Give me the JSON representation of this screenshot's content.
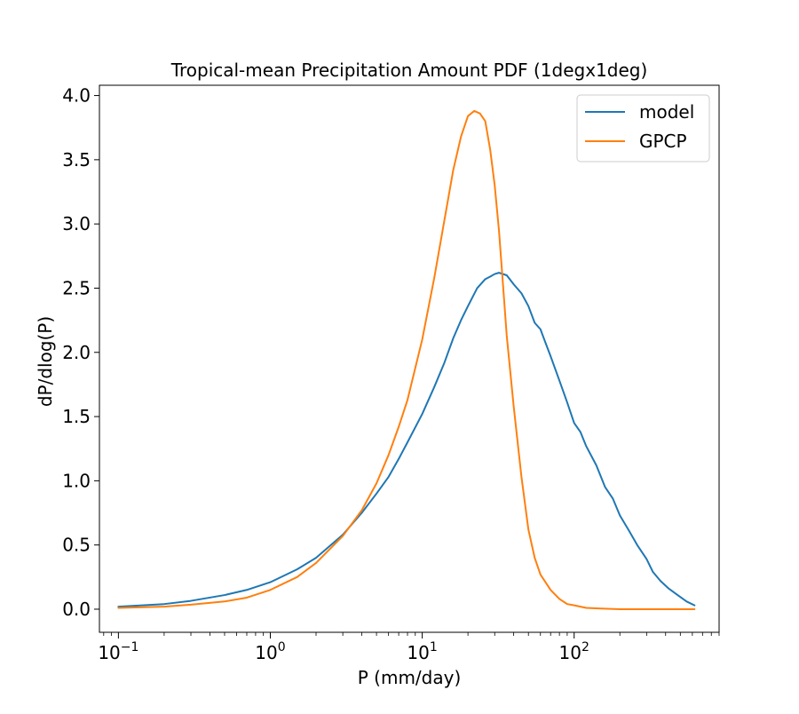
{
  "chart_data": {
    "type": "line",
    "title": "Tropical-mean Precipitation Amount PDF (1degx1deg)",
    "xlabel": "P (mm/day)",
    "ylabel": "dP/dlog(P)",
    "x_scale": "log",
    "xlim": [
      0.075,
      900
    ],
    "ylim": [
      -0.18,
      4.08
    ],
    "x_major_ticks": [
      {
        "value": 0.1,
        "base": "10",
        "exp": "−1"
      },
      {
        "value": 1,
        "base": "10",
        "exp": "0"
      },
      {
        "value": 10,
        "base": "10",
        "exp": "1"
      },
      {
        "value": 100,
        "base": "10",
        "exp": "2"
      }
    ],
    "y_ticks": [
      {
        "value": 0.0,
        "label": "0.0"
      },
      {
        "value": 0.5,
        "label": "0.5"
      },
      {
        "value": 1.0,
        "label": "1.0"
      },
      {
        "value": 1.5,
        "label": "1.5"
      },
      {
        "value": 2.0,
        "label": "2.0"
      },
      {
        "value": 2.5,
        "label": "2.5"
      },
      {
        "value": 3.0,
        "label": "3.0"
      },
      {
        "value": 3.5,
        "label": "3.5"
      },
      {
        "value": 4.0,
        "label": "4.0"
      }
    ],
    "grid": false,
    "legend_position": "top-right",
    "series": [
      {
        "name": "model",
        "color": "#1f77b4",
        "points": [
          [
            0.1,
            0.02
          ],
          [
            0.2,
            0.04
          ],
          [
            0.3,
            0.065
          ],
          [
            0.5,
            0.11
          ],
          [
            0.7,
            0.15
          ],
          [
            1.0,
            0.21
          ],
          [
            1.5,
            0.31
          ],
          [
            2.0,
            0.4
          ],
          [
            3.0,
            0.58
          ],
          [
            4.0,
            0.75
          ],
          [
            5.0,
            0.9
          ],
          [
            6.0,
            1.03
          ],
          [
            7.0,
            1.17
          ],
          [
            8.0,
            1.3
          ],
          [
            10.0,
            1.52
          ],
          [
            12.0,
            1.73
          ],
          [
            14.0,
            1.92
          ],
          [
            16.0,
            2.11
          ],
          [
            18.0,
            2.25
          ],
          [
            20.0,
            2.36
          ],
          [
            23.0,
            2.5
          ],
          [
            26.0,
            2.57
          ],
          [
            28.0,
            2.59
          ],
          [
            30.0,
            2.61
          ],
          [
            32.0,
            2.62
          ],
          [
            36.0,
            2.6
          ],
          [
            40.0,
            2.53
          ],
          [
            45.0,
            2.46
          ],
          [
            50.0,
            2.36
          ],
          [
            55.0,
            2.23
          ],
          [
            60.0,
            2.18
          ],
          [
            65.0,
            2.07
          ],
          [
            70.0,
            1.97
          ],
          [
            80.0,
            1.78
          ],
          [
            90.0,
            1.61
          ],
          [
            100.0,
            1.45
          ],
          [
            110.0,
            1.38
          ],
          [
            120.0,
            1.27
          ],
          [
            140.0,
            1.12
          ],
          [
            160.0,
            0.95
          ],
          [
            180.0,
            0.86
          ],
          [
            200.0,
            0.73
          ],
          [
            230.0,
            0.61
          ],
          [
            260.0,
            0.5
          ],
          [
            300.0,
            0.39
          ],
          [
            330.0,
            0.29
          ],
          [
            370.0,
            0.22
          ],
          [
            420.0,
            0.16
          ],
          [
            480.0,
            0.11
          ],
          [
            550.0,
            0.06
          ],
          [
            620.0,
            0.03
          ]
        ]
      },
      {
        "name": "GPCP",
        "color": "#ff7f0e",
        "points": [
          [
            0.1,
            0.01
          ],
          [
            0.2,
            0.02
          ],
          [
            0.3,
            0.035
          ],
          [
            0.5,
            0.06
          ],
          [
            0.7,
            0.09
          ],
          [
            1.0,
            0.15
          ],
          [
            1.5,
            0.25
          ],
          [
            2.0,
            0.36
          ],
          [
            3.0,
            0.57
          ],
          [
            4.0,
            0.77
          ],
          [
            5.0,
            0.98
          ],
          [
            6.0,
            1.2
          ],
          [
            7.0,
            1.42
          ],
          [
            8.0,
            1.63
          ],
          [
            10.0,
            2.1
          ],
          [
            12.0,
            2.58
          ],
          [
            14.0,
            3.03
          ],
          [
            16.0,
            3.42
          ],
          [
            18.0,
            3.68
          ],
          [
            20.0,
            3.84
          ],
          [
            22.0,
            3.88
          ],
          [
            24.0,
            3.86
          ],
          [
            26.0,
            3.8
          ],
          [
            28.0,
            3.58
          ],
          [
            30.0,
            3.3
          ],
          [
            32.0,
            2.95
          ],
          [
            34.0,
            2.53
          ],
          [
            36.0,
            2.13
          ],
          [
            40.0,
            1.58
          ],
          [
            45.0,
            1.03
          ],
          [
            50.0,
            0.62
          ],
          [
            55.0,
            0.4
          ],
          [
            60.0,
            0.27
          ],
          [
            70.0,
            0.15
          ],
          [
            80.0,
            0.08
          ],
          [
            90.0,
            0.04
          ],
          [
            100.0,
            0.03
          ],
          [
            120.0,
            0.01
          ],
          [
            150.0,
            0.005
          ],
          [
            200.0,
            0.0
          ],
          [
            300.0,
            0.0
          ],
          [
            400.0,
            0.0
          ],
          [
            500.0,
            0.0
          ],
          [
            620.0,
            0.0
          ]
        ]
      }
    ]
  }
}
